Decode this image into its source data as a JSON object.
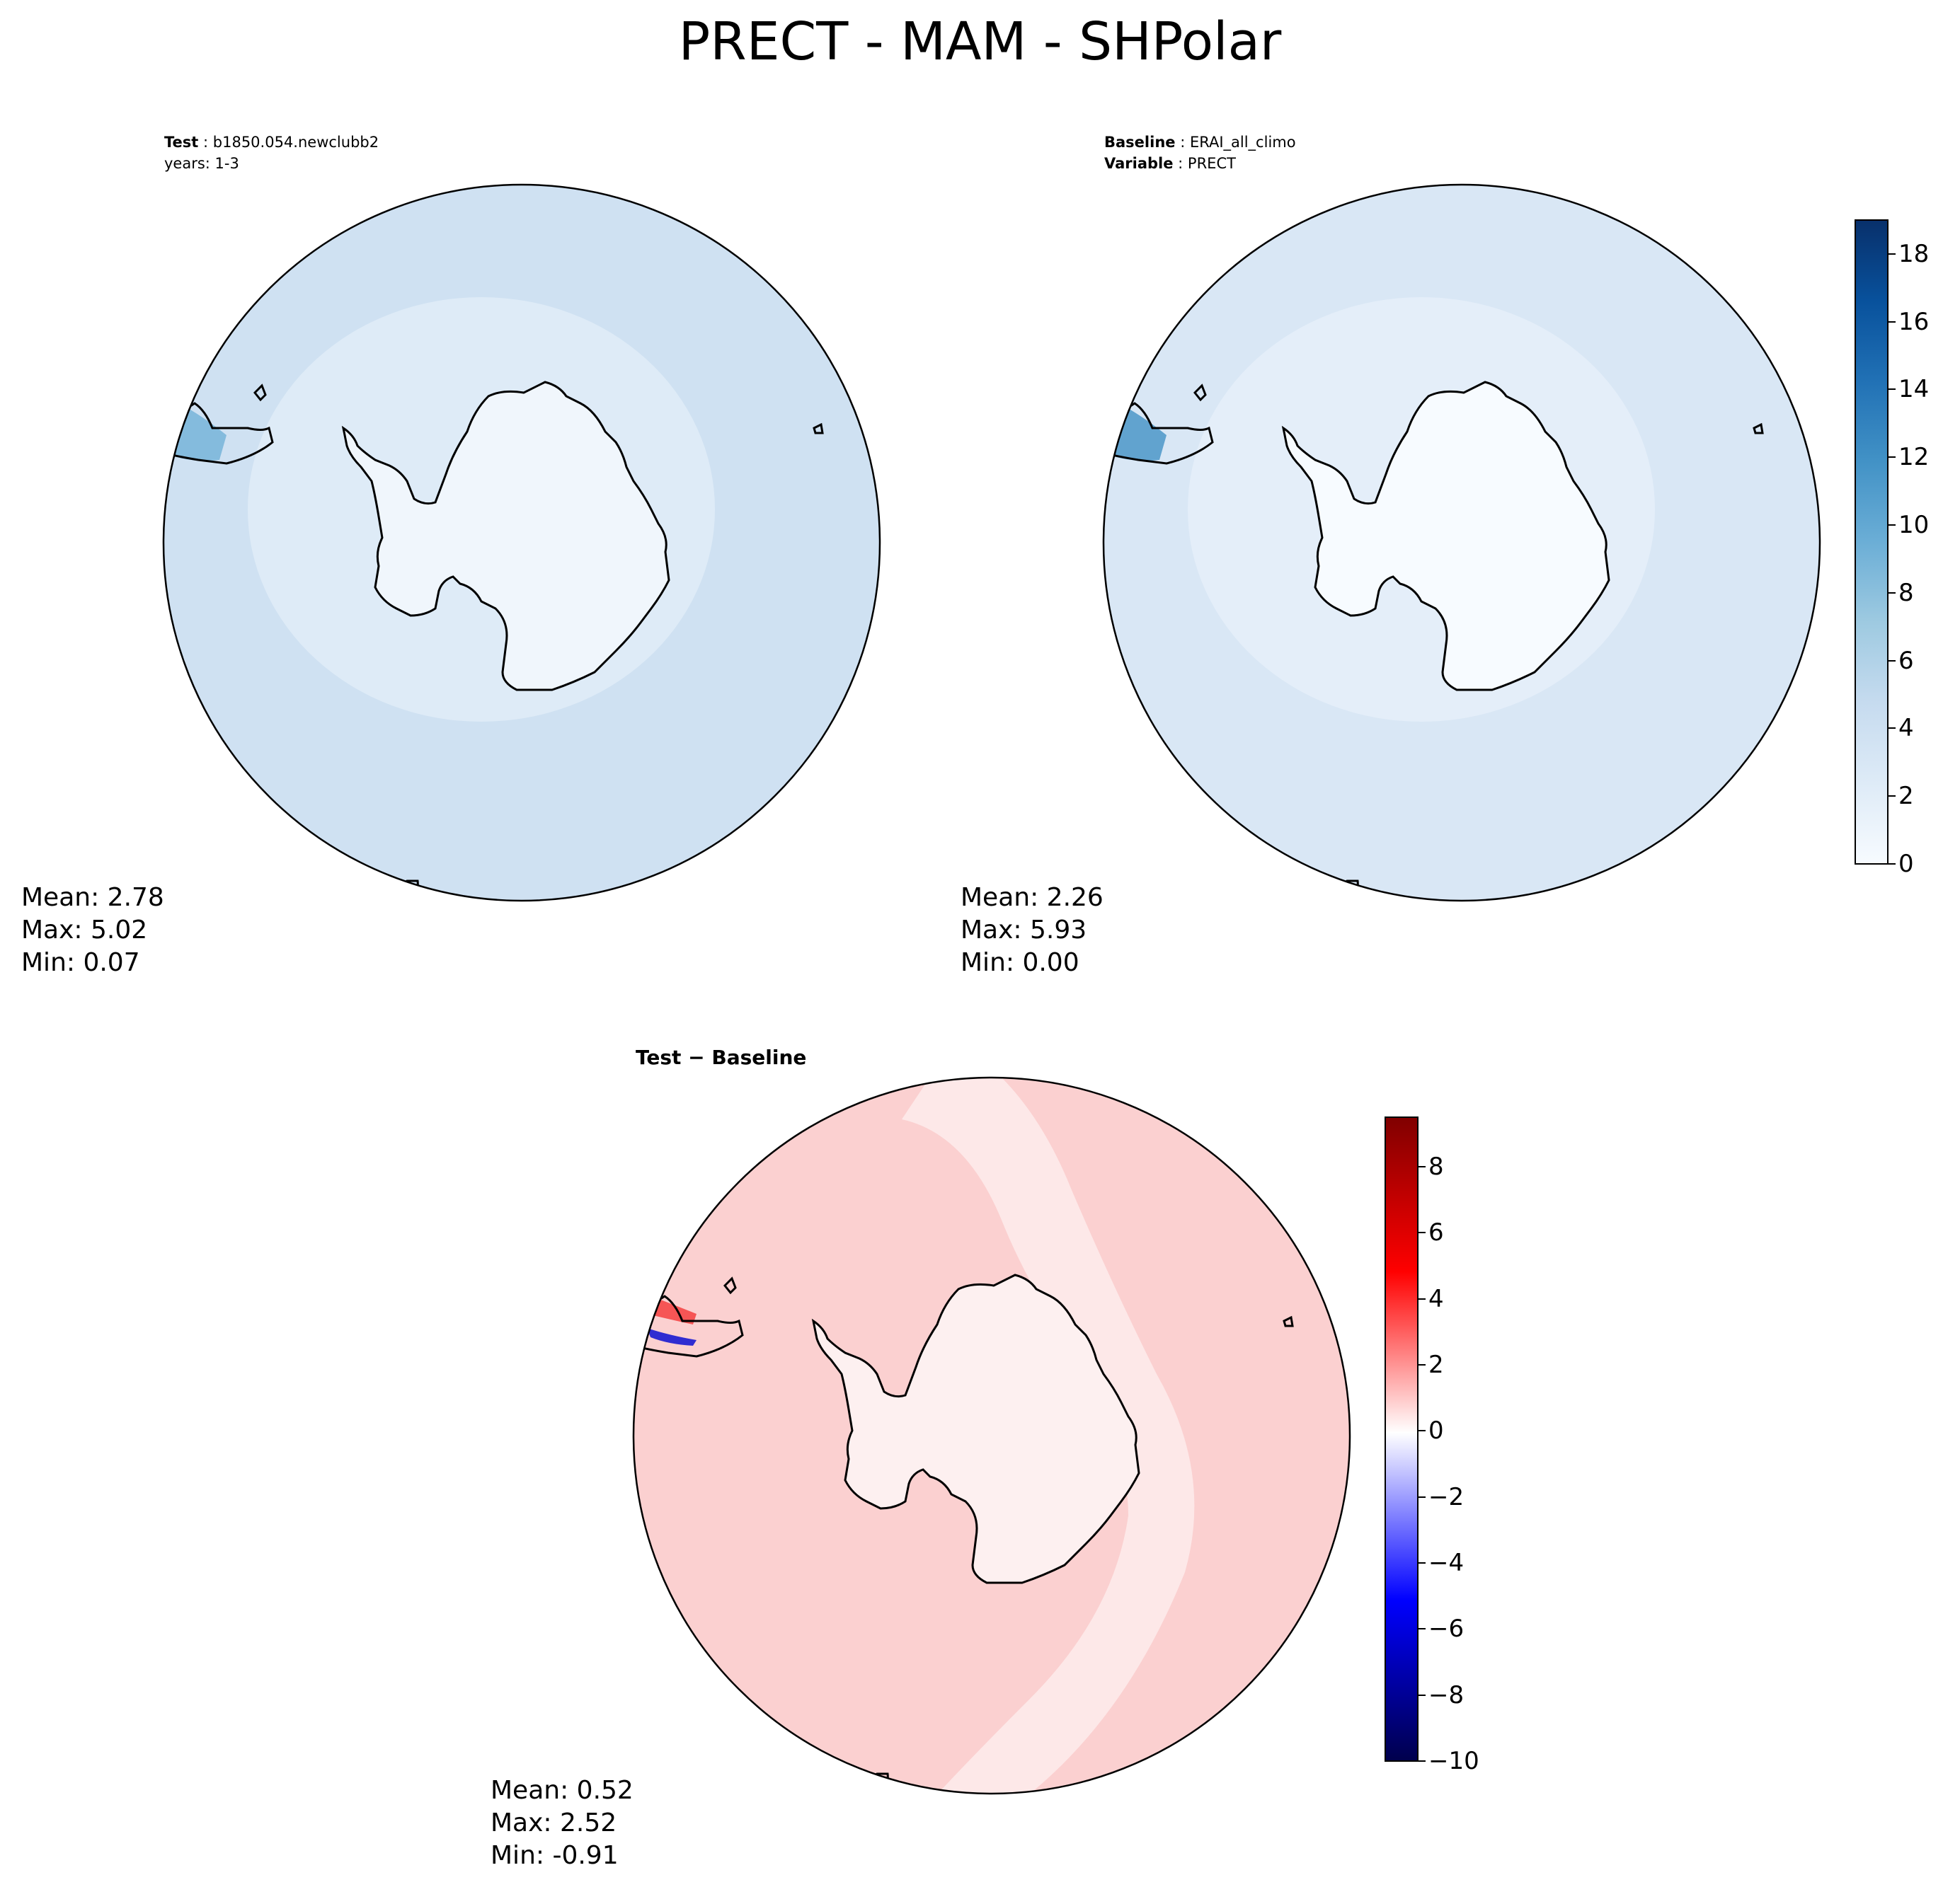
{
  "title": "PRECT - MAM - SHPolar",
  "panels": {
    "test": {
      "label_key": "Test",
      "label_value": "b1850.054.newclubb2",
      "years": "years: 1-3",
      "stats": {
        "mean": "Mean:  2.78",
        "max": "Max:  5.02",
        "min": "Min:  0.07"
      }
    },
    "baseline": {
      "label_key": "Baseline",
      "label_value": "ERAI_all_climo",
      "variable_key": "Variable",
      "variable_value": "PRECT",
      "stats": {
        "mean": "Mean:  2.26",
        "max": "Max:  5.93",
        "min": "Min:  0.00"
      }
    },
    "diff": {
      "title": "Test − Baseline",
      "stats": {
        "mean": "Mean:  0.52",
        "max": "Max:  2.52",
        "min": "Min: -0.91"
      }
    }
  },
  "colorbars": {
    "precip": {
      "range": [
        0,
        19
      ],
      "ticks": [
        "0",
        "2",
        "4",
        "6",
        "8",
        "10",
        "12",
        "14",
        "16",
        "18"
      ],
      "colormap": "Blues",
      "colors": [
        "#f7fbff",
        "#deebf7",
        "#c6dbef",
        "#9ecae1",
        "#6baed6",
        "#4292c6",
        "#2171b5",
        "#08519c",
        "#08306b"
      ]
    },
    "diff": {
      "range": [
        -10,
        9.5
      ],
      "ticks": [
        "−10",
        "−8",
        "−6",
        "−4",
        "−2",
        "0",
        "2",
        "4",
        "6",
        "8"
      ],
      "colormap": "seismic",
      "colors": [
        "#00004c",
        "#0000ff",
        "#ffffff",
        "#ff0000",
        "#800000"
      ]
    }
  },
  "map_colors": {
    "test_ocean": "#cfe1f2",
    "test_inner": "#deebf7",
    "test_land": "#f0f6fc",
    "baseline_ocean": "#d9e7f5",
    "baseline_inner": "#e4eef9",
    "baseline_land": "#f7fbff",
    "diff_ocean": "#fbd0d0",
    "diff_inner": "#fde8e8",
    "diff_land": "#fdf0f0",
    "coast": "#000000"
  }
}
